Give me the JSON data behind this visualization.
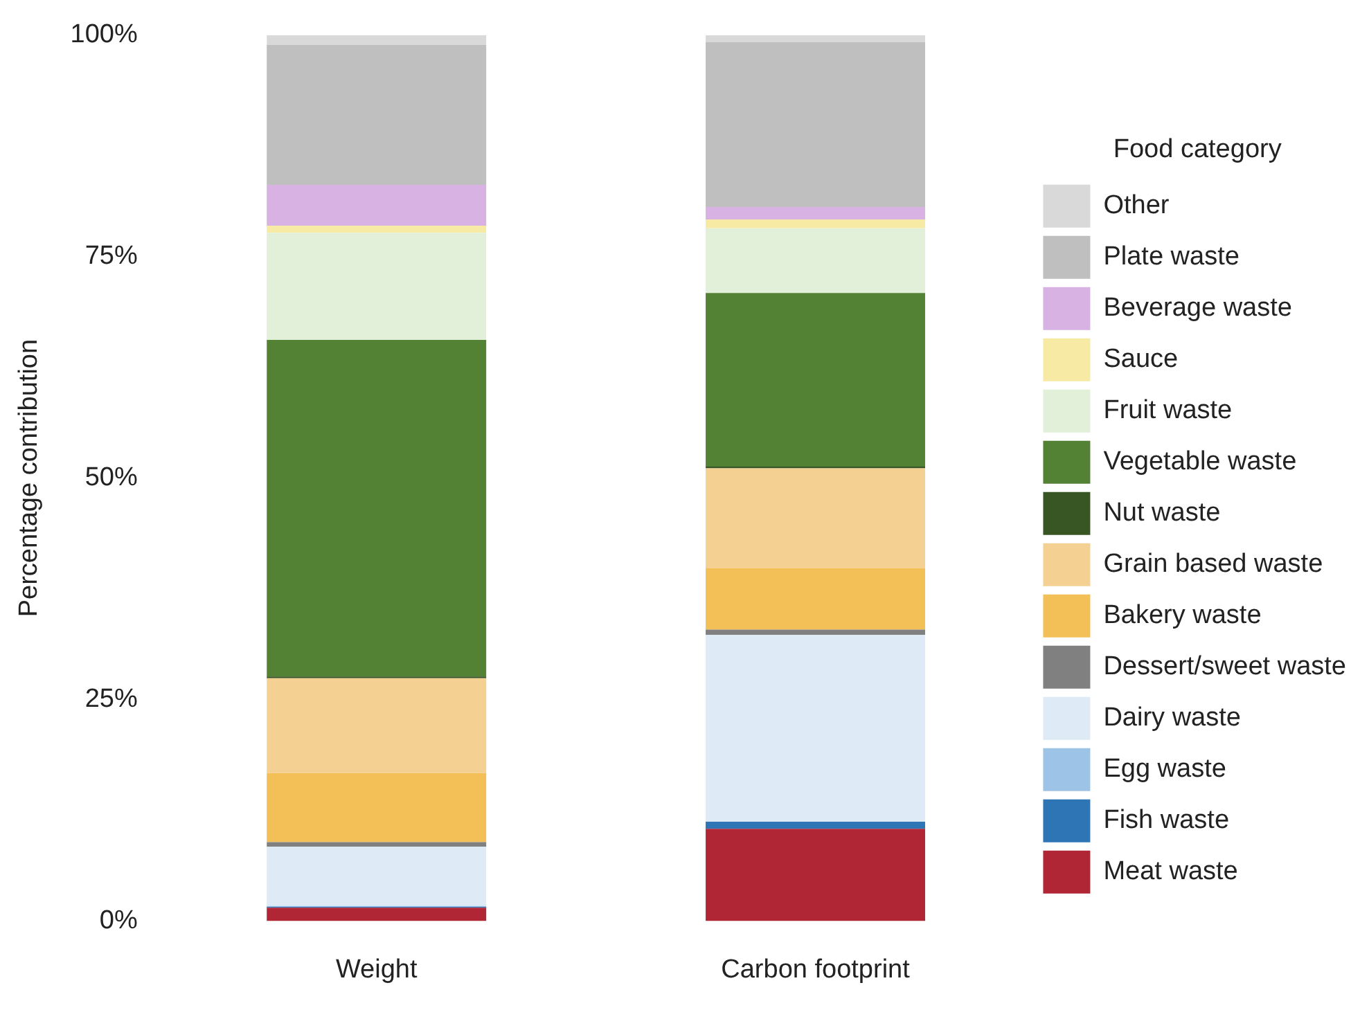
{
  "chart_data": {
    "type": "bar",
    "stacked": true,
    "ylabel": "Percentage contribution",
    "legend_title": "Food category",
    "legend": "right",
    "grid": false,
    "categories": [
      "Weight",
      "Carbon footprint"
    ],
    "ylim": [
      0,
      100
    ],
    "yticks": [
      {
        "value": 0,
        "label": "0%"
      },
      {
        "value": 25,
        "label": "25%"
      },
      {
        "value": 50,
        "label": "50%"
      },
      {
        "value": 75,
        "label": "75%"
      },
      {
        "value": 100,
        "label": "100%"
      }
    ],
    "series": [
      {
        "name": "Meat waste",
        "color": "#b02634",
        "values": [
          1.5,
          10.4
        ]
      },
      {
        "name": "Fish waste",
        "color": "#2e75b6",
        "values": [
          0.1,
          0.8
        ]
      },
      {
        "name": "Egg waste",
        "color": "#9dc3e6",
        "values": [
          0.1,
          0
        ]
      },
      {
        "name": "Dairy waste",
        "color": "#deeaf6",
        "values": [
          6.7,
          21.1
        ]
      },
      {
        "name": "Dessert/sweet waste",
        "color": "#808080",
        "values": [
          0.5,
          0.6
        ]
      },
      {
        "name": "Bakery waste",
        "color": "#f3bf57",
        "values": [
          7.8,
          6.9
        ]
      },
      {
        "name": "Grain based waste",
        "color": "#f4d193",
        "values": [
          10.7,
          11.3
        ]
      },
      {
        "name": "Nut waste",
        "color": "#375623",
        "values": [
          0.2,
          0.2
        ]
      },
      {
        "name": "Vegetable waste",
        "color": "#548235",
        "values": [
          38.0,
          19.6
        ]
      },
      {
        "name": "Fruit waste",
        "color": "#e2efd9",
        "values": [
          12.1,
          7.3
        ]
      },
      {
        "name": "Sauce",
        "color": "#f7eaa5",
        "values": [
          0.8,
          1.0
        ]
      },
      {
        "name": "Beverage waste",
        "color": "#d7b2e2",
        "values": [
          4.6,
          1.4
        ]
      },
      {
        "name": "Plate waste",
        "color": "#bfbfbf",
        "values": [
          15.8,
          18.6
        ]
      },
      {
        "name": "Other",
        "color": "#d9d9d9",
        "values": [
          1.1,
          0.8
        ]
      }
    ]
  }
}
